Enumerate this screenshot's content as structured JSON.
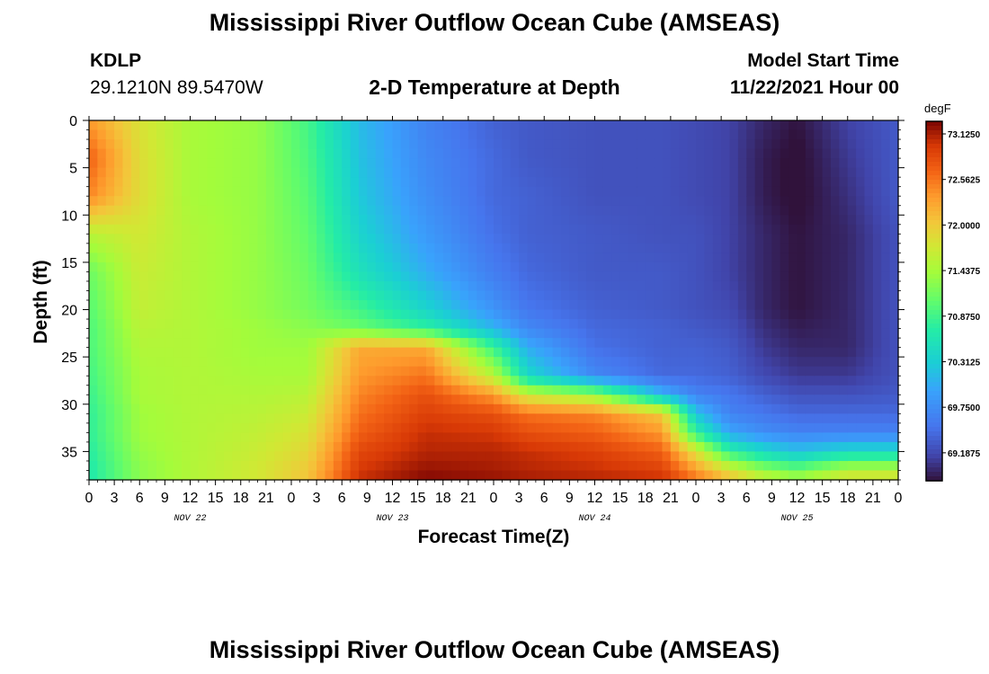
{
  "header": {
    "title": "Mississippi River Outflow Ocean Cube (AMSEAS)",
    "station_id": "KDLP",
    "station_coords": "29.1210N  89.5470W",
    "subtitle": "2-D Temperature at Depth",
    "model_start_label": "Model Start Time",
    "model_start_time": "11/22/2021 Hour 00"
  },
  "footer": {
    "title": "Mississippi River Outflow Ocean Cube (AMSEAS)"
  },
  "chart_data": {
    "type": "heatmap",
    "title": "2-D Temperature at Depth",
    "xlabel": "Forecast Time(Z)",
    "ylabel": "Depth (ft)",
    "xlim": [
      0,
      96
    ],
    "ylim": [
      0,
      38
    ],
    "y_inverted": true,
    "x_tick_labels": [
      "0",
      "3",
      "6",
      "9",
      "12",
      "15",
      "18",
      "21",
      "0",
      "3",
      "6",
      "9",
      "12",
      "15",
      "18",
      "21",
      "0",
      "3",
      "6",
      "9",
      "12",
      "15",
      "18",
      "21",
      "0",
      "3",
      "6",
      "9",
      "12",
      "15",
      "18",
      "21",
      "0"
    ],
    "x_tick_hours": [
      0,
      3,
      6,
      9,
      12,
      15,
      18,
      21,
      24,
      27,
      30,
      33,
      36,
      39,
      42,
      45,
      48,
      51,
      54,
      57,
      60,
      63,
      66,
      69,
      72,
      75,
      78,
      81,
      84,
      87,
      90,
      93,
      96
    ],
    "day_labels": [
      {
        "label": "NOV 22",
        "hour": 12
      },
      {
        "label": "NOV 23",
        "hour": 36
      },
      {
        "label": "NOV 24",
        "hour": 60
      },
      {
        "label": "NOV 25",
        "hour": 84
      }
    ],
    "y_ticks": [
      0,
      5,
      10,
      15,
      20,
      25,
      30,
      35
    ],
    "colorbar": {
      "unit": "degF",
      "min": 69.1875,
      "max": 73.125,
      "tick_labels": [
        "73.1250",
        "72.5625",
        "72.0000",
        "71.4375",
        "70.8750",
        "70.3125",
        "69.7500",
        "69.1875"
      ],
      "tick_values": [
        73.125,
        72.5625,
        72.0,
        71.4375,
        70.875,
        70.3125,
        69.75,
        69.1875
      ]
    },
    "temperature_field": {
      "x_hours": [
        0,
        6,
        12,
        20,
        26,
        32,
        40,
        48,
        52,
        60,
        68,
        72,
        76,
        80,
        84,
        90,
        96
      ],
      "depths_ft": [
        0,
        4,
        8,
        12,
        16,
        20,
        22,
        24,
        27,
        29,
        31,
        33,
        35,
        37,
        38
      ],
      "values_degF": [
        [
          72.3,
          71.8,
          71.5,
          71.4,
          71.0,
          70.35,
          69.9,
          69.65,
          69.6,
          69.55,
          69.55,
          69.5,
          69.45,
          69.3,
          69.2,
          69.45,
          69.6
        ],
        [
          72.6,
          71.85,
          71.5,
          71.4,
          71.05,
          70.4,
          69.95,
          69.7,
          69.6,
          69.55,
          69.55,
          69.5,
          69.45,
          69.25,
          69.15,
          69.4,
          69.6
        ],
        [
          72.4,
          71.85,
          71.5,
          71.4,
          71.1,
          70.45,
          70.0,
          69.7,
          69.65,
          69.55,
          69.55,
          69.5,
          69.45,
          69.25,
          69.15,
          69.35,
          69.6
        ],
        [
          71.6,
          71.75,
          71.55,
          71.4,
          71.15,
          70.55,
          70.1,
          69.75,
          69.65,
          69.6,
          69.55,
          69.55,
          69.45,
          69.3,
          69.2,
          69.3,
          69.55
        ],
        [
          71.2,
          71.7,
          71.55,
          71.4,
          71.2,
          70.7,
          70.25,
          69.85,
          69.7,
          69.6,
          69.6,
          69.55,
          69.45,
          69.3,
          69.2,
          69.3,
          69.55
        ],
        [
          71.1,
          71.65,
          71.55,
          71.4,
          71.25,
          71.0,
          70.55,
          70.05,
          69.8,
          69.65,
          69.6,
          69.55,
          69.5,
          69.3,
          69.2,
          69.3,
          69.55
        ],
        [
          71.05,
          71.6,
          71.55,
          71.45,
          71.35,
          71.2,
          70.9,
          70.3,
          69.95,
          69.7,
          69.65,
          69.6,
          69.55,
          69.35,
          69.25,
          69.3,
          69.55
        ],
        [
          71.05,
          71.55,
          71.55,
          71.45,
          71.45,
          72.2,
          72.2,
          70.95,
          70.25,
          69.75,
          69.65,
          69.65,
          69.6,
          69.4,
          69.3,
          69.3,
          69.55
        ],
        [
          71.0,
          71.5,
          71.55,
          71.5,
          71.5,
          72.3,
          72.5,
          71.6,
          70.6,
          69.95,
          69.7,
          69.7,
          69.65,
          69.5,
          69.4,
          69.4,
          69.55
        ],
        [
          70.95,
          71.5,
          71.55,
          71.55,
          71.6,
          72.4,
          72.7,
          72.3,
          71.7,
          71.4,
          70.3,
          69.9,
          69.8,
          69.65,
          69.55,
          69.55,
          69.6
        ],
        [
          70.9,
          71.45,
          71.55,
          71.6,
          71.7,
          72.5,
          72.8,
          72.7,
          72.5,
          72.4,
          72.0,
          70.4,
          69.9,
          69.8,
          69.7,
          69.7,
          69.7
        ],
        [
          70.9,
          71.45,
          71.55,
          71.65,
          71.8,
          72.6,
          72.9,
          72.85,
          72.7,
          72.6,
          72.3,
          70.9,
          70.2,
          70.0,
          69.9,
          69.9,
          69.9
        ],
        [
          70.85,
          71.4,
          71.55,
          71.7,
          71.9,
          72.75,
          72.95,
          72.95,
          72.9,
          72.8,
          72.6,
          71.8,
          70.9,
          70.6,
          70.4,
          70.6,
          70.6
        ],
        [
          70.8,
          71.35,
          71.55,
          71.75,
          72.0,
          72.85,
          73.05,
          73.0,
          72.95,
          72.9,
          72.8,
          72.3,
          71.8,
          71.4,
          71.2,
          71.6,
          71.6
        ],
        [
          70.8,
          71.35,
          71.55,
          71.75,
          72.05,
          72.9,
          73.1,
          73.05,
          73.0,
          72.95,
          72.9,
          72.5,
          72.1,
          71.7,
          71.5,
          71.8,
          71.8
        ]
      ]
    }
  }
}
